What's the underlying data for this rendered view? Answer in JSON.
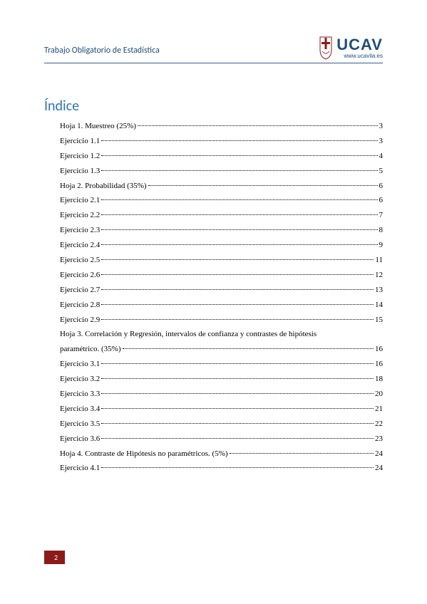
{
  "header": {
    "title": "Trabajo Obligatorio de Estadística",
    "logo": {
      "main": "UCAV",
      "sub": "www.ucavila.es"
    }
  },
  "toc": {
    "title": "Índice",
    "entries": [
      {
        "label": "Hoja 1. Muestreo (25%)",
        "page": "3"
      },
      {
        "label": "Ejercicio 1.1",
        "page": "3"
      },
      {
        "label": "Ejercicio 1.2",
        "page": "4"
      },
      {
        "label": "Ejercicio 1.3",
        "page": "5"
      },
      {
        "label": "Hoja 2. Probabilidad (35%)",
        "page": "6"
      },
      {
        "label": "Ejercicio 2.1",
        "page": "6"
      },
      {
        "label": "Ejercicio 2.2",
        "page": "7"
      },
      {
        "label": "Ejercicio 2.3",
        "page": "8"
      },
      {
        "label": "Ejercicio 2.4",
        "page": "9"
      },
      {
        "label": "Ejercicio 2.5",
        "page": "11"
      },
      {
        "label": "Ejercicio 2.6",
        "page": "12"
      },
      {
        "label": "Ejercicio 2.7",
        "page": "13"
      },
      {
        "label": "Ejercicio 2.8",
        "page": "14"
      },
      {
        "label": "Ejercicio 2.9",
        "page": "15"
      },
      {
        "label_line1": "Hoja 3. Correlación y Regresión, intervalos de confianza y contrastes de hipótesis",
        "label_line2": "paramétrico. (35%)",
        "page": "16",
        "multiline": true
      },
      {
        "label": "Ejercicio 3.1",
        "page": "16"
      },
      {
        "label": "Ejercicio 3.2",
        "page": "18"
      },
      {
        "label": "Ejercicio 3.3",
        "page": "20"
      },
      {
        "label": "Ejercicio 3.4",
        "page": "21"
      },
      {
        "label": "Ejercicio 3.5",
        "page": "22"
      },
      {
        "label": "Ejercicio 3.6",
        "page": "23"
      },
      {
        "label": "Hoja 4. Contraste de Hipótesis no paramétricos. (5%)",
        "page": "24"
      },
      {
        "label": "Ejercicio 4.1",
        "page": "24"
      }
    ]
  },
  "footer": {
    "page_number": "2"
  },
  "colors": {
    "header_text": "#1f4e79",
    "header_rule": "#3a5d8a",
    "toc_title": "#2e74b5",
    "badge_bg": "#8b1a1a",
    "badge_text": "#ffffff",
    "body_bg": "#ffffff"
  }
}
